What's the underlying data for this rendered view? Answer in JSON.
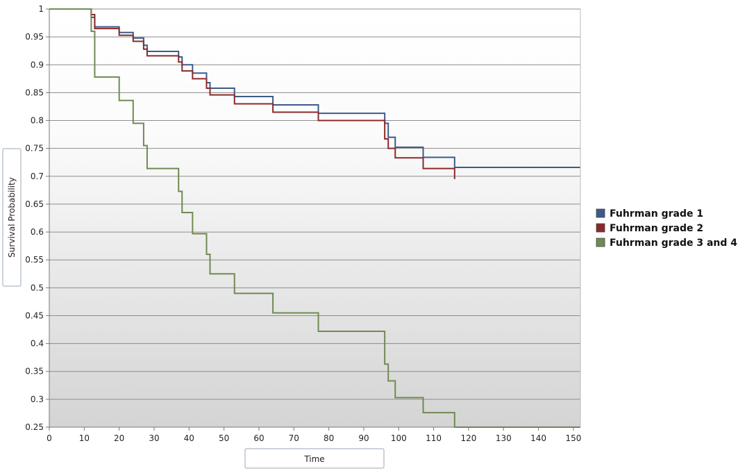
{
  "chart_data": {
    "type": "line",
    "step": true,
    "xlabel": "Time",
    "ylabel": "Survival Probability",
    "xlim": [
      0,
      152
    ],
    "ylim": [
      0.25,
      1
    ],
    "x_ticks": [
      0,
      10,
      20,
      30,
      40,
      50,
      60,
      70,
      80,
      90,
      100,
      110,
      120,
      130,
      140,
      150
    ],
    "y_ticks": [
      0.25,
      0.3,
      0.35,
      0.4,
      0.45,
      0.5,
      0.55,
      0.6,
      0.65,
      0.7,
      0.75,
      0.8,
      0.85,
      0.9,
      0.95,
      1
    ],
    "y_tick_labels": [
      "0.25",
      "0.3",
      "0.35",
      "0.4",
      "0.45",
      "0.5",
      "0.55",
      "0.6",
      "0.65",
      "0.7",
      "0.75",
      "0.8",
      "0.85",
      "0.9",
      "0.95",
      "1"
    ],
    "grid": true,
    "legend_position": "right",
    "series": [
      {
        "name": "Fuhrman grade 1",
        "color": "#3d5a8a",
        "x": [
          0,
          12,
          13,
          20,
          24,
          27,
          28,
          37,
          38,
          41,
          45,
          46,
          53,
          64,
          77,
          96,
          97,
          99,
          107,
          116,
          152
        ],
        "y": [
          1,
          0.985,
          0.968,
          0.958,
          0.948,
          0.935,
          0.924,
          0.914,
          0.9,
          0.885,
          0.868,
          0.858,
          0.843,
          0.828,
          0.813,
          0.795,
          0.77,
          0.752,
          0.734,
          0.716,
          0.716
        ]
      },
      {
        "name": "Fuhrman grade 2",
        "color": "#8b2a2a",
        "x": [
          0,
          12,
          13,
          20,
          24,
          27,
          28,
          37,
          38,
          41,
          45,
          46,
          53,
          64,
          77,
          96,
          97,
          99,
          107,
          116
        ],
        "y": [
          1,
          0.99,
          0.965,
          0.953,
          0.942,
          0.928,
          0.916,
          0.905,
          0.889,
          0.875,
          0.858,
          0.846,
          0.83,
          0.815,
          0.8,
          0.767,
          0.75,
          0.733,
          0.714,
          0.695
        ]
      },
      {
        "name": "Fuhrman grade 3 and 4",
        "color": "#6f8a52",
        "x": [
          0,
          12,
          13,
          20,
          24,
          27,
          28,
          37,
          38,
          41,
          45,
          46,
          53,
          64,
          77,
          96,
          97,
          99,
          107,
          116,
          152
        ],
        "y": [
          1,
          0.96,
          0.878,
          0.836,
          0.795,
          0.755,
          0.714,
          0.673,
          0.635,
          0.597,
          0.56,
          0.525,
          0.49,
          0.455,
          0.422,
          0.363,
          0.333,
          0.303,
          0.276,
          0.25,
          0.25
        ]
      }
    ]
  }
}
